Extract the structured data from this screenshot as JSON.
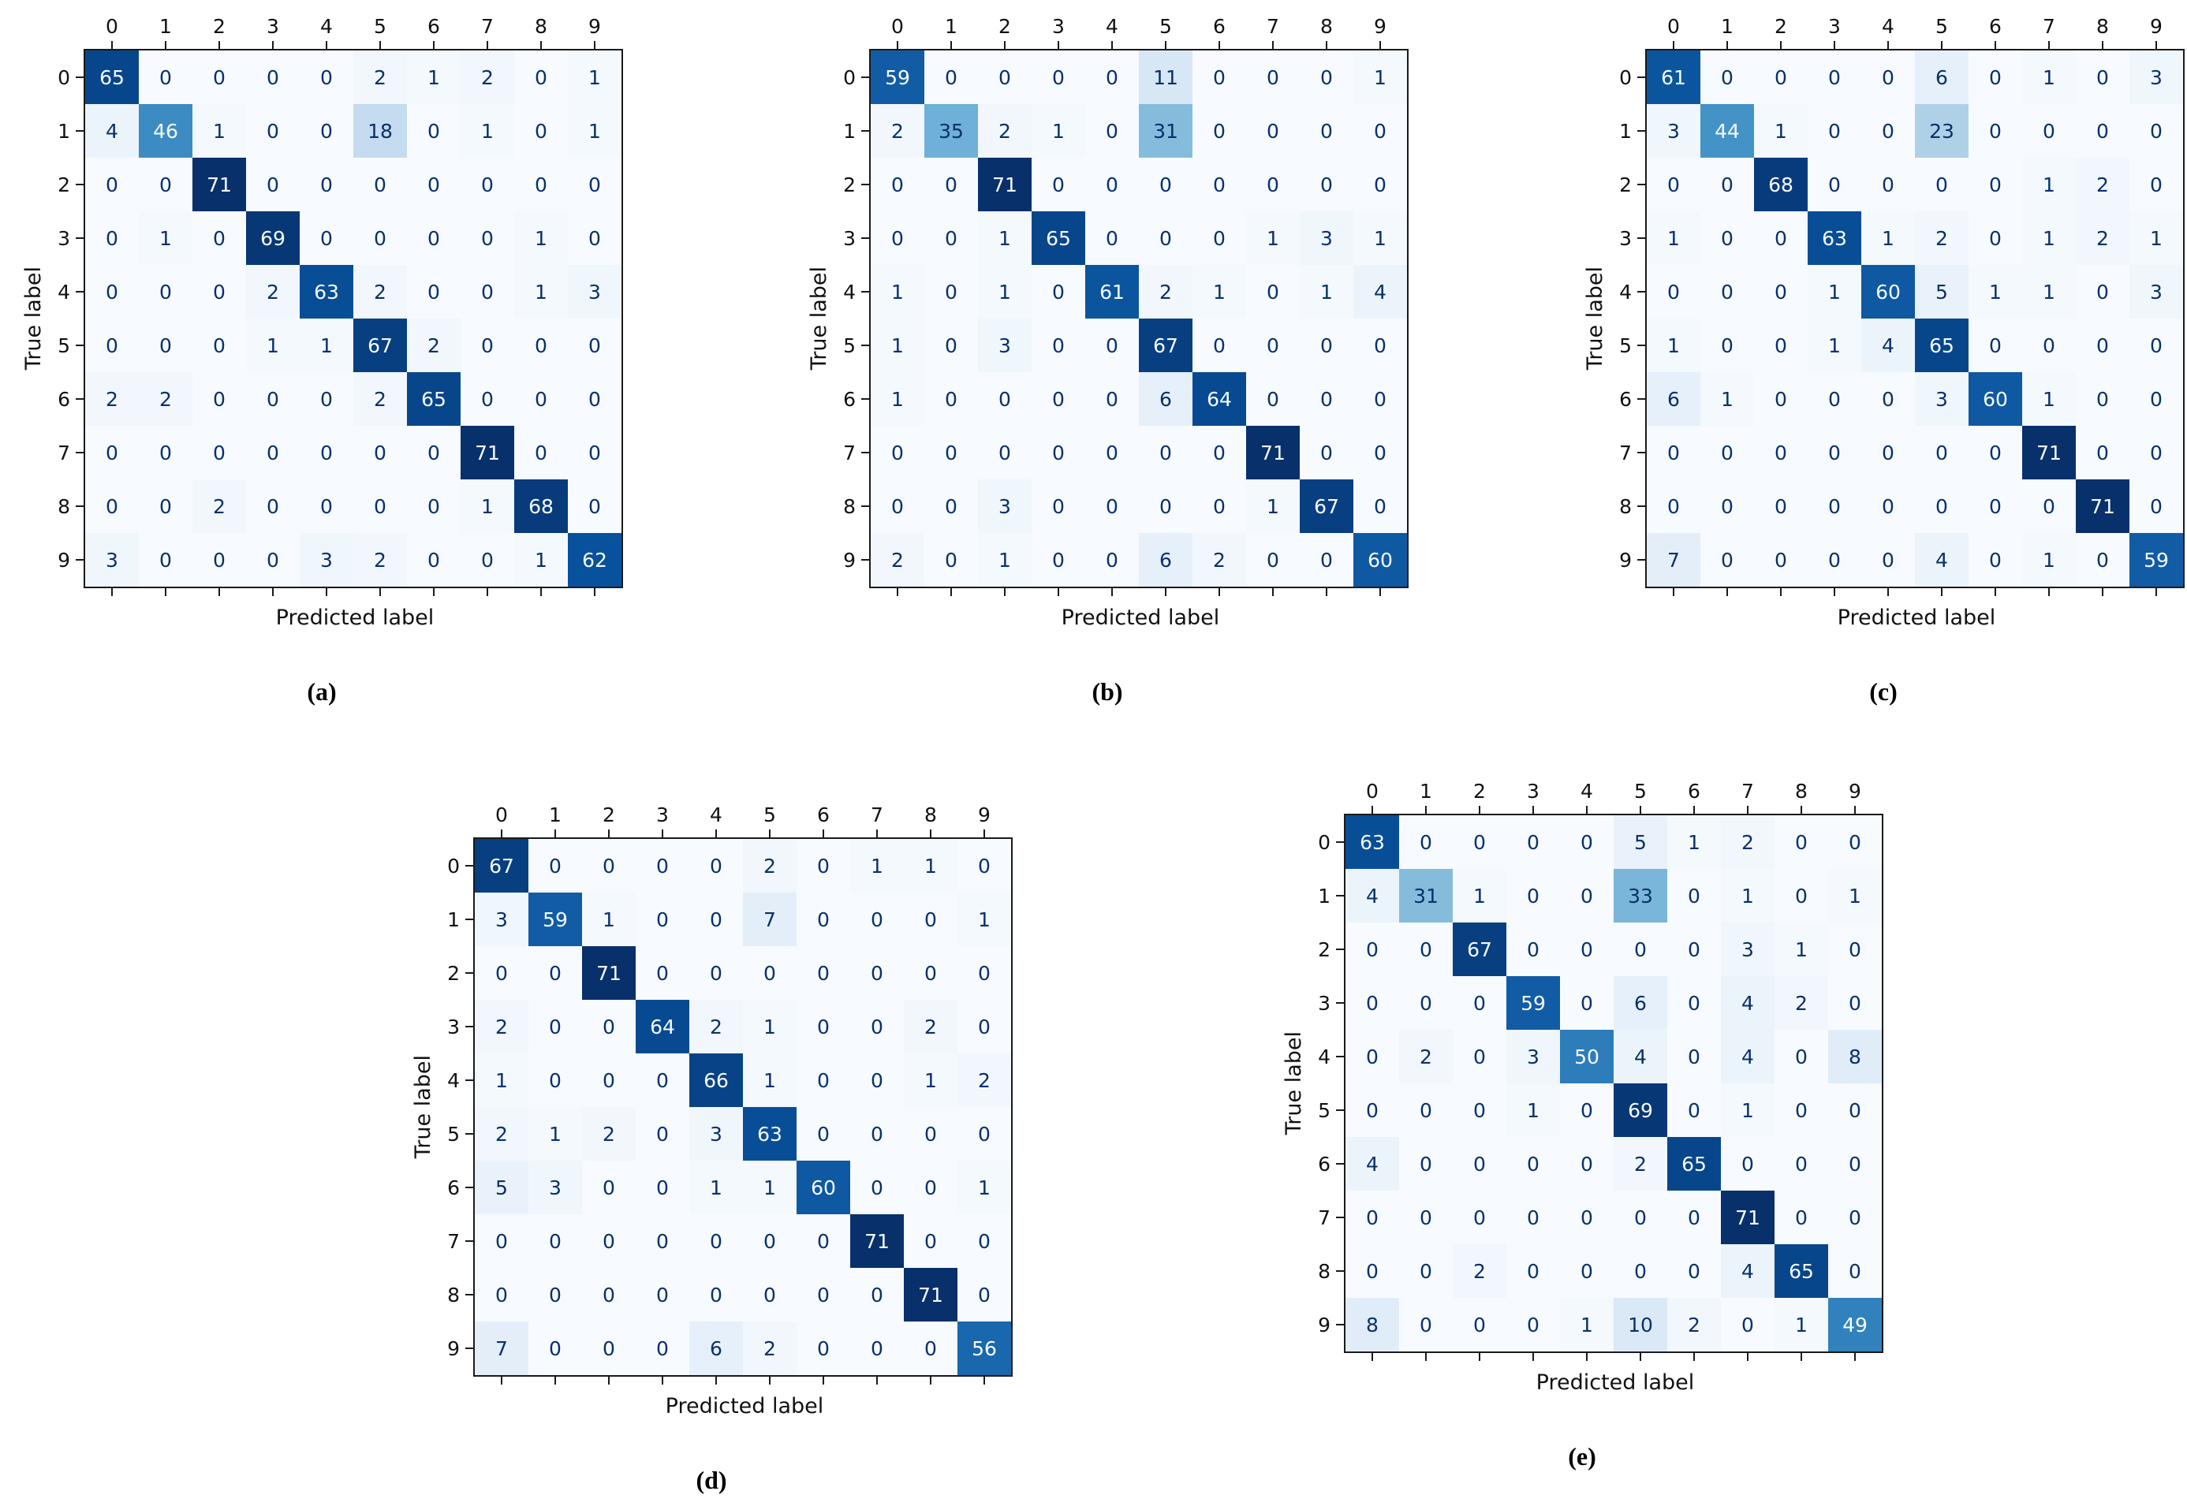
{
  "figure": {
    "background": "#ffffff"
  },
  "colors": {
    "axis_color": "#1a1a1a",
    "colormap_low": "#f7fbff",
    "colormap_high": "#08306b",
    "cell_text_on_light": "#08306b",
    "cell_text_on_dark": "#f7fbff",
    "colormap_stops": [
      "#f7fbff",
      "#deebf7",
      "#c6dbef",
      "#9ecae1",
      "#6baed6",
      "#4292c6",
      "#2171b5",
      "#08519c",
      "#08306b"
    ]
  },
  "chart_data": [
    {
      "type": "heatmap",
      "caption": "(a)",
      "xlabel": "Predicted label",
      "ylabel": "True label",
      "x_ticks": [
        "0",
        "1",
        "2",
        "3",
        "4",
        "5",
        "6",
        "7",
        "8",
        "9"
      ],
      "y_ticks": [
        "0",
        "1",
        "2",
        "3",
        "4",
        "5",
        "6",
        "7",
        "8",
        "9"
      ],
      "colormap": "Blues",
      "vmin": 0,
      "vmax": 71,
      "values": [
        [
          65,
          0,
          0,
          0,
          0,
          2,
          1,
          2,
          0,
          1
        ],
        [
          4,
          46,
          1,
          0,
          0,
          18,
          0,
          1,
          0,
          1
        ],
        [
          0,
          0,
          71,
          0,
          0,
          0,
          0,
          0,
          0,
          0
        ],
        [
          0,
          1,
          0,
          69,
          0,
          0,
          0,
          0,
          1,
          0
        ],
        [
          0,
          0,
          0,
          2,
          63,
          2,
          0,
          0,
          1,
          3
        ],
        [
          0,
          0,
          0,
          1,
          1,
          67,
          2,
          0,
          0,
          0
        ],
        [
          2,
          2,
          0,
          0,
          0,
          2,
          65,
          0,
          0,
          0
        ],
        [
          0,
          0,
          0,
          0,
          0,
          0,
          0,
          71,
          0,
          0
        ],
        [
          0,
          0,
          2,
          0,
          0,
          0,
          0,
          1,
          68,
          0
        ],
        [
          3,
          0,
          0,
          0,
          3,
          2,
          0,
          0,
          1,
          62
        ]
      ]
    },
    {
      "type": "heatmap",
      "caption": "(b)",
      "xlabel": "Predicted label",
      "ylabel": "True label",
      "x_ticks": [
        "0",
        "1",
        "2",
        "3",
        "4",
        "5",
        "6",
        "7",
        "8",
        "9"
      ],
      "y_ticks": [
        "0",
        "1",
        "2",
        "3",
        "4",
        "5",
        "6",
        "7",
        "8",
        "9"
      ],
      "colormap": "Blues",
      "vmin": 0,
      "vmax": 71,
      "values": [
        [
          59,
          0,
          0,
          0,
          0,
          11,
          0,
          0,
          0,
          1
        ],
        [
          2,
          35,
          2,
          1,
          0,
          31,
          0,
          0,
          0,
          0
        ],
        [
          0,
          0,
          71,
          0,
          0,
          0,
          0,
          0,
          0,
          0
        ],
        [
          0,
          0,
          1,
          65,
          0,
          0,
          0,
          1,
          3,
          1
        ],
        [
          1,
          0,
          1,
          0,
          61,
          2,
          1,
          0,
          1,
          4
        ],
        [
          1,
          0,
          3,
          0,
          0,
          67,
          0,
          0,
          0,
          0
        ],
        [
          1,
          0,
          0,
          0,
          0,
          6,
          64,
          0,
          0,
          0
        ],
        [
          0,
          0,
          0,
          0,
          0,
          0,
          0,
          71,
          0,
          0
        ],
        [
          0,
          0,
          3,
          0,
          0,
          0,
          0,
          1,
          67,
          0
        ],
        [
          2,
          0,
          1,
          0,
          0,
          6,
          2,
          0,
          0,
          60
        ]
      ]
    },
    {
      "type": "heatmap",
      "caption": "(c)",
      "xlabel": "Predicted label",
      "ylabel": "True label",
      "x_ticks": [
        "0",
        "1",
        "2",
        "3",
        "4",
        "5",
        "6",
        "7",
        "8",
        "9"
      ],
      "y_ticks": [
        "0",
        "1",
        "2",
        "3",
        "4",
        "5",
        "6",
        "7",
        "8",
        "9"
      ],
      "colormap": "Blues",
      "vmin": 0,
      "vmax": 71,
      "values": [
        [
          61,
          0,
          0,
          0,
          0,
          6,
          0,
          1,
          0,
          3
        ],
        [
          3,
          44,
          1,
          0,
          0,
          23,
          0,
          0,
          0,
          0
        ],
        [
          0,
          0,
          68,
          0,
          0,
          0,
          0,
          1,
          2,
          0
        ],
        [
          1,
          0,
          0,
          63,
          1,
          2,
          0,
          1,
          2,
          1
        ],
        [
          0,
          0,
          0,
          1,
          60,
          5,
          1,
          1,
          0,
          3
        ],
        [
          1,
          0,
          0,
          1,
          4,
          65,
          0,
          0,
          0,
          0
        ],
        [
          6,
          1,
          0,
          0,
          0,
          3,
          60,
          1,
          0,
          0
        ],
        [
          0,
          0,
          0,
          0,
          0,
          0,
          0,
          71,
          0,
          0
        ],
        [
          0,
          0,
          0,
          0,
          0,
          0,
          0,
          0,
          71,
          0
        ],
        [
          7,
          0,
          0,
          0,
          0,
          4,
          0,
          1,
          0,
          59
        ]
      ]
    },
    {
      "type": "heatmap",
      "caption": "(d)",
      "xlabel": "Predicted label",
      "ylabel": "True label",
      "x_ticks": [
        "0",
        "1",
        "2",
        "3",
        "4",
        "5",
        "6",
        "7",
        "8",
        "9"
      ],
      "y_ticks": [
        "0",
        "1",
        "2",
        "3",
        "4",
        "5",
        "6",
        "7",
        "8",
        "9"
      ],
      "colormap": "Blues",
      "vmin": 0,
      "vmax": 71,
      "values": [
        [
          67,
          0,
          0,
          0,
          0,
          2,
          0,
          1,
          1,
          0
        ],
        [
          3,
          59,
          1,
          0,
          0,
          7,
          0,
          0,
          0,
          1
        ],
        [
          0,
          0,
          71,
          0,
          0,
          0,
          0,
          0,
          0,
          0
        ],
        [
          2,
          0,
          0,
          64,
          2,
          1,
          0,
          0,
          2,
          0
        ],
        [
          1,
          0,
          0,
          0,
          66,
          1,
          0,
          0,
          1,
          2
        ],
        [
          2,
          1,
          2,
          0,
          3,
          63,
          0,
          0,
          0,
          0
        ],
        [
          5,
          3,
          0,
          0,
          1,
          1,
          60,
          0,
          0,
          1
        ],
        [
          0,
          0,
          0,
          0,
          0,
          0,
          0,
          71,
          0,
          0
        ],
        [
          0,
          0,
          0,
          0,
          0,
          0,
          0,
          0,
          71,
          0
        ],
        [
          7,
          0,
          0,
          0,
          6,
          2,
          0,
          0,
          0,
          56
        ]
      ]
    },
    {
      "type": "heatmap",
      "caption": "(e)",
      "xlabel": "Predicted label",
      "ylabel": "True label",
      "x_ticks": [
        "0",
        "1",
        "2",
        "3",
        "4",
        "5",
        "6",
        "7",
        "8",
        "9"
      ],
      "y_ticks": [
        "0",
        "1",
        "2",
        "3",
        "4",
        "5",
        "6",
        "7",
        "8",
        "9"
      ],
      "colormap": "Blues",
      "vmin": 0,
      "vmax": 71,
      "values": [
        [
          63,
          0,
          0,
          0,
          0,
          5,
          1,
          2,
          0,
          0
        ],
        [
          4,
          31,
          1,
          0,
          0,
          33,
          0,
          1,
          0,
          1
        ],
        [
          0,
          0,
          67,
          0,
          0,
          0,
          0,
          3,
          1,
          0
        ],
        [
          0,
          0,
          0,
          59,
          0,
          6,
          0,
          4,
          2,
          0
        ],
        [
          0,
          2,
          0,
          3,
          50,
          4,
          0,
          4,
          0,
          8
        ],
        [
          0,
          0,
          0,
          1,
          0,
          69,
          0,
          1,
          0,
          0
        ],
        [
          4,
          0,
          0,
          0,
          0,
          2,
          65,
          0,
          0,
          0
        ],
        [
          0,
          0,
          0,
          0,
          0,
          0,
          0,
          71,
          0,
          0
        ],
        [
          0,
          0,
          2,
          0,
          0,
          0,
          0,
          4,
          65,
          0
        ],
        [
          8,
          0,
          0,
          0,
          1,
          10,
          2,
          0,
          1,
          49
        ]
      ]
    }
  ]
}
